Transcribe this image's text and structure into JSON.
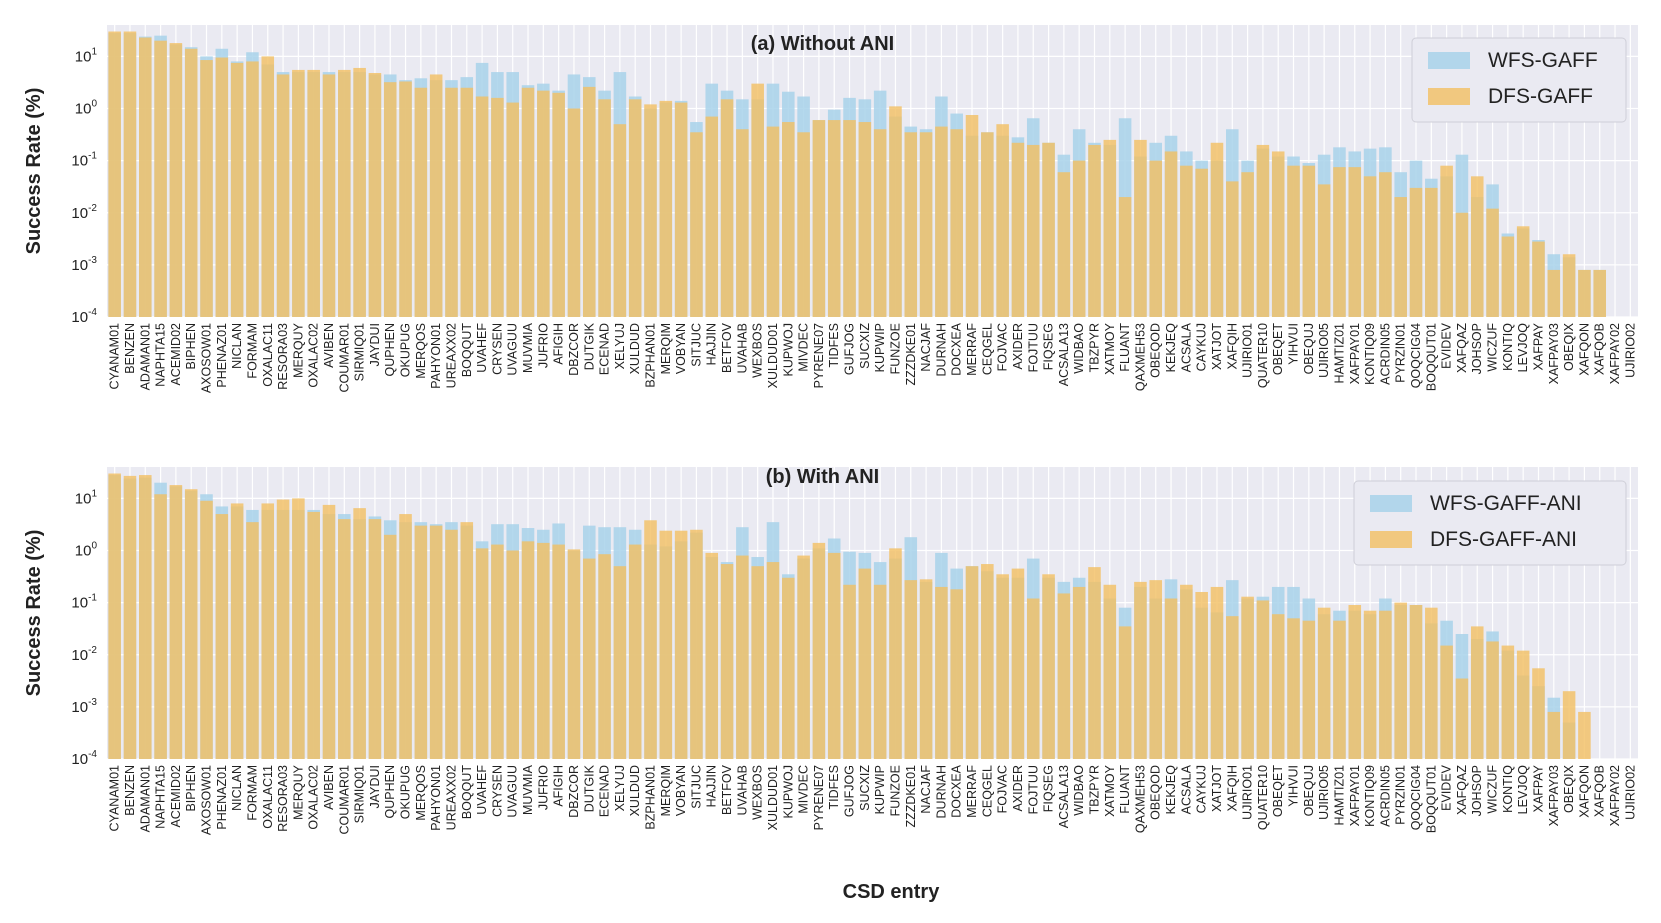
{
  "chart_data": {
    "type": "bar",
    "yscale": "log",
    "ylim": [
      0.0001,
      40
    ],
    "yticks": [
      {
        "value": 10,
        "base": "10",
        "exp": "1"
      },
      {
        "value": 1,
        "base": "10",
        "exp": "0"
      },
      {
        "value": 0.1,
        "base": "10",
        "exp": "-1"
      },
      {
        "value": 0.01,
        "base": "10",
        "exp": "-2"
      },
      {
        "value": 0.001,
        "base": "10",
        "exp": "-3"
      },
      {
        "value": 0.0001,
        "base": "10",
        "exp": "-4"
      }
    ],
    "xlabel": "CSD entry",
    "ylabel": "Success Rate (%)",
    "categories": [
      "CYANAM01",
      "BENZEN",
      "ADAMAN01",
      "NAPHTA15",
      "ACEMID02",
      "BIPHEN",
      "AXOSOW01",
      "PHENAZ01",
      "NICLAN",
      "FORMAM",
      "OXALAC11",
      "RESORA03",
      "MERQUY",
      "OXALAC02",
      "AVIBEN",
      "COUMAR01",
      "SIRMIQ01",
      "JAYDUI",
      "QUPHEN",
      "OKUPUG",
      "MERQOS",
      "PAHYON01",
      "UREAXX02",
      "BOQQUT",
      "UVAHEF",
      "CRYSEN",
      "UVAGUU",
      "MUVMIA",
      "JUFRIO",
      "AFIGIH",
      "DBZCOR",
      "DUTGIK",
      "ECENAD",
      "XELYUJ",
      "XULDUD",
      "BZPHAN01",
      "MERQIM",
      "VOBYAN",
      "SITJUC",
      "HAJJIN",
      "BETFOV",
      "UVAHAB",
      "WEXBOS",
      "XULDUD01",
      "KUPWOJ",
      "MIVDEC",
      "PYRENE07",
      "TIDFES",
      "GUFJOG",
      "SUCXIZ",
      "KUPWIP",
      "FUNZOE",
      "ZZZDKE01",
      "NACJAF",
      "DURNAH",
      "DOCXEA",
      "MERRAF",
      "CEQGEL",
      "FOJVAC",
      "AXIDER",
      "FOJTUU",
      "FIQSEG",
      "ACSALA13",
      "WIDBAO",
      "TBZPYR",
      "XATMOY",
      "FLUANT",
      "QAXMEH53",
      "OBEQOD",
      "KEKJEQ",
      "ACSALA",
      "CAYKUJ",
      "XATJOT",
      "XAFQIH",
      "UJIRIO01",
      "QUATER10",
      "OBEQET",
      "YIHVUI",
      "OBEQUJ",
      "UJIRIO05",
      "HAMTIZ01",
      "XAFPAY01",
      "KONTIQ09",
      "ACRDIN05",
      "PYRZIN01",
      "QOQCIG04",
      "BOQQUT01",
      "EVIDEV",
      "XAFQAZ",
      "JOHSOP",
      "WICZUF",
      "KONTIQ",
      "LEVJOQ",
      "XAFPAY",
      "XAFPAY03",
      "OBEQIX",
      "XAFQON",
      "XAFQOB",
      "XAFPAY02",
      "UJIRIO02"
    ],
    "panels": [
      {
        "title": "(a) Without ANI",
        "legend": [
          "WFS-GAFF",
          "DFS-GAFF"
        ],
        "legend_position": "top-right",
        "series": [
          {
            "name": "WFS-GAFF",
            "color": "#a8d2ea",
            "values": [
              28,
              28,
              24,
              25,
              17,
              15,
              10,
              14,
              8,
              12,
              7,
              5,
              5,
              5,
              5,
              5,
              5,
              4.5,
              4.5,
              3.5,
              3.8,
              3.5,
              3.5,
              4,
              7.5,
              5,
              5,
              2.8,
              3,
              2.2,
              4.5,
              4,
              2.2,
              5,
              1.7,
              1,
              1.3,
              1.4,
              0.55,
              3,
              2.2,
              1.5,
              1.5,
              3,
              2.1,
              1.7,
              0.6,
              0.95,
              1.6,
              1.5,
              2.2,
              0.7,
              0.45,
              0.4,
              1.7,
              0.8,
              0.3,
              0.35,
              0.3,
              0.28,
              0.65,
              0.22,
              0.13,
              0.4,
              0.22,
              0.2,
              0.65,
              0.12,
              0.22,
              0.3,
              0.15,
              0.1,
              0.1,
              0.4,
              0.1,
              0.17,
              0.12,
              0.12,
              0.09,
              0.13,
              0.18,
              0.15,
              0.17,
              0.18,
              0.06,
              0.1,
              0.045,
              0.05,
              0.13,
              0.02,
              0.035,
              0.004,
              0.005,
              0.003,
              0.0016,
              0.0014,
              0.0008,
              0.0008,
              0,
              0
            ]
          },
          {
            "name": "DFS-GAFF",
            "color": "#f2bf62",
            "values": [
              30,
              30,
              23,
              20,
              18,
              14,
              8.5,
              9.5,
              7.5,
              8,
              10,
              4.5,
              5.5,
              5.5,
              4.5,
              5.5,
              6,
              4.8,
              3.2,
              3.3,
              2.5,
              4.5,
              2.5,
              2.5,
              1.7,
              1.6,
              1.3,
              2.5,
              2.2,
              2,
              1,
              2.6,
              1.5,
              0.5,
              1.5,
              1.2,
              1.4,
              1.3,
              0.35,
              0.7,
              1.5,
              0.4,
              3,
              0.45,
              0.55,
              0.35,
              0.6,
              0.6,
              0.6,
              0.55,
              0.4,
              1.1,
              0.35,
              0.35,
              0.45,
              0.4,
              0.75,
              0.35,
              0.5,
              0.22,
              0.2,
              0.22,
              0.06,
              0.1,
              0.2,
              0.25,
              0.02,
              0.25,
              0.1,
              0.15,
              0.08,
              0.07,
              0.22,
              0.04,
              0.06,
              0.2,
              0.15,
              0.08,
              0.08,
              0.035,
              0.075,
              0.075,
              0.05,
              0.06,
              0.02,
              0.03,
              0.03,
              0.08,
              0.01,
              0.05,
              0.012,
              0.0035,
              0.0055,
              0.0028,
              0.0008,
              0.0016,
              0.0008,
              0.0008,
              0,
              0
            ]
          }
        ]
      },
      {
        "title": "(b) With ANI",
        "legend": [
          "WFS-GAFF-ANI",
          "DFS-GAFF-ANI"
        ],
        "legend_position": "top-right",
        "series": [
          {
            "name": "WFS-GAFF-ANI",
            "color": "#a8d2ea",
            "values": [
              28,
              24,
              25,
              20,
              17,
              14,
              12,
              7,
              7,
              6,
              6,
              6,
              6,
              6,
              5,
              5,
              4,
              4.5,
              3.8,
              3.5,
              3.5,
              3.2,
              3.5,
              3,
              1.5,
              3.2,
              3.2,
              2.7,
              2.5,
              3.3,
              1,
              3,
              2.8,
              2.8,
              2.5,
              1.3,
              1.2,
              1.5,
              2.2,
              0.75,
              0.6,
              2.8,
              0.75,
              3.5,
              0.35,
              0.7,
              1.1,
              1.7,
              0.95,
              0.9,
              0.6,
              0.7,
              1.8,
              0.25,
              0.9,
              0.45,
              0.5,
              0.4,
              0.3,
              0.3,
              0.7,
              0.3,
              0.25,
              0.3,
              0.25,
              0.12,
              0.08,
              0.2,
              0.12,
              0.28,
              0.18,
              0.08,
              0.065,
              0.27,
              0.12,
              0.13,
              0.2,
              0.2,
              0.12,
              0.06,
              0.07,
              0.07,
              0.06,
              0.12,
              0.09,
              0.09,
              0.04,
              0.045,
              0.025,
              0.02,
              0.028,
              0.012,
              0.004,
              0.0025,
              0.0015,
              0.0005,
              0,
              0,
              0,
              0
            ]
          },
          {
            "name": "DFS-GAFF-ANI",
            "color": "#f2bf62",
            "values": [
              30,
              27,
              28,
              12,
              18,
              15,
              9,
              5,
              8,
              3.5,
              8,
              9.5,
              10,
              5.5,
              7.5,
              4,
              6.5,
              4,
              2,
              5,
              3,
              3,
              2.5,
              3.5,
              1.1,
              1.3,
              1,
              1.5,
              1.4,
              1.3,
              1.05,
              0.7,
              0.85,
              0.5,
              1.3,
              3.8,
              2.4,
              2.4,
              2.5,
              0.9,
              0.55,
              0.8,
              0.5,
              0.6,
              0.3,
              0.8,
              1.4,
              0.9,
              0.22,
              0.45,
              0.22,
              1.1,
              0.27,
              0.28,
              0.2,
              0.18,
              0.5,
              0.55,
              0.35,
              0.45,
              0.12,
              0.35,
              0.15,
              0.2,
              0.48,
              0.22,
              0.035,
              0.25,
              0.27,
              0.12,
              0.22,
              0.16,
              0.2,
              0.055,
              0.13,
              0.11,
              0.06,
              0.05,
              0.045,
              0.08,
              0.045,
              0.09,
              0.07,
              0.07,
              0.1,
              0.09,
              0.08,
              0.015,
              0.0035,
              0.035,
              0.018,
              0.015,
              0.012,
              0.0055,
              0.0008,
              0.002,
              0.0008,
              0,
              0,
              0
            ]
          }
        ]
      }
    ]
  }
}
